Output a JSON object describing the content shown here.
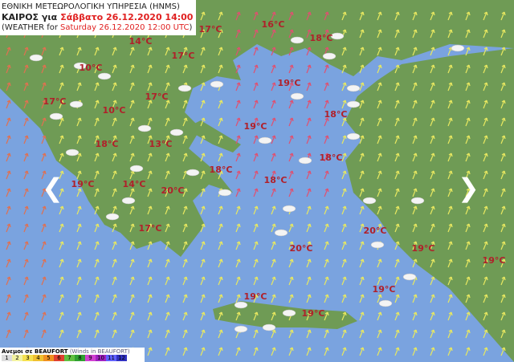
{
  "header": {
    "title": "ΕΘΝΙΚΗ ΜΕΤΕΩΡΟΛΟΓΙΚΗ ΥΠΗΡΕΣΙΑ (HNMS)",
    "line2": {
      "label": "ΚΑΙΡΟΣ για",
      "date": "Σάββατο 26.12.2020 14:00"
    },
    "line3": {
      "label": "(WEATHER for",
      "date": "Saturday 26.12.2020 12:00 UTC",
      "close": ")"
    }
  },
  "temperatures": [
    "14°C",
    "17°C",
    "16°C",
    "18°C",
    "10°C",
    "17°C",
    "19°C",
    "17°C",
    "17°C",
    "10°C",
    "18°C",
    "19°C",
    "18°C",
    "13°C",
    "18°C",
    "18°C",
    "18°C",
    "19°C",
    "14°C",
    "20°C",
    "17°C",
    "20°C",
    "20°C",
    "19°C",
    "19°C",
    "19°C",
    "19°C",
    "19°C"
  ],
  "legend": {
    "title": "Ανεμοι σε BEAUFORT",
    "subtitle": "(Winds in BEAUFORT)",
    "scale": [
      "1",
      "2",
      "3",
      "4",
      "5",
      "6",
      "7",
      "8",
      "9",
      "10",
      "11",
      "12"
    ]
  }
}
